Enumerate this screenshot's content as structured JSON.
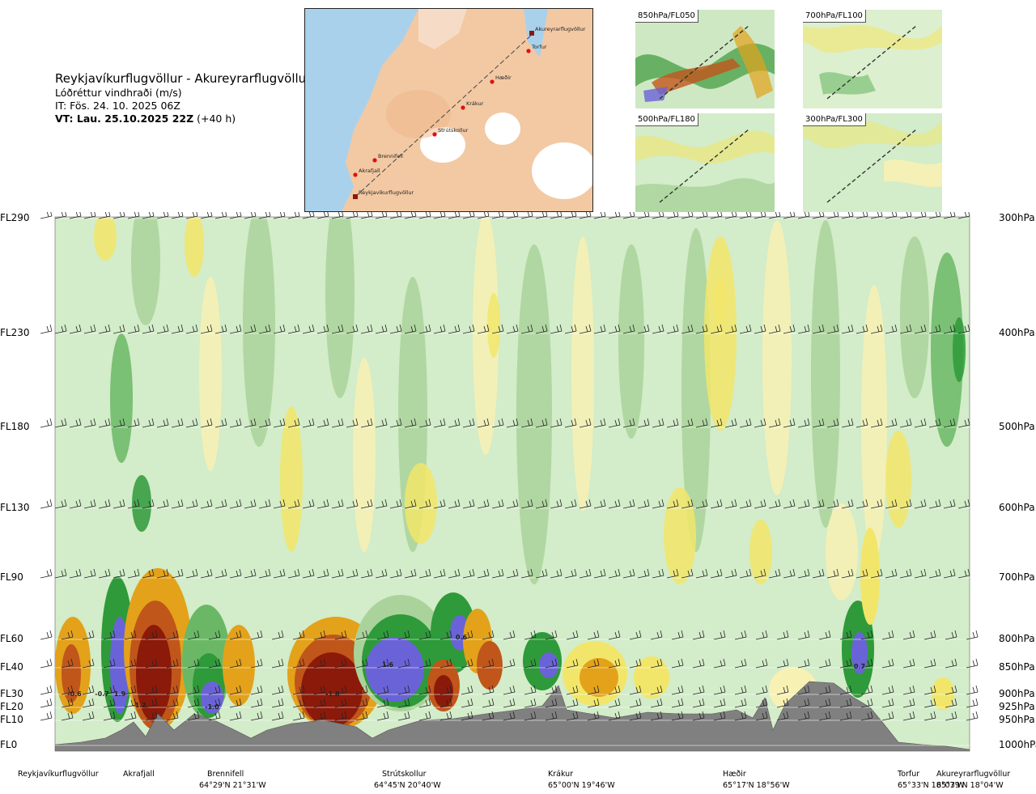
{
  "header": {
    "route": "Reykjavíkurflugvöllur - Akureyrarflugvöllur",
    "field": "Lóðréttur vindhraði (m/s)",
    "issue_time": "IT: Fös. 24. 10. 2025 06Z",
    "valid_time_bold": "VT: Lau. 25.10.2025 22Z",
    "valid_time_offset": " (+40 h)"
  },
  "route_map": {
    "labels": [
      "Akureyrarflugvöllur",
      "Torfur",
      "Hæðir",
      "Krákur",
      "Strútskollur",
      "Brennifell",
      "Akrafjall",
      "Reykjavíkurflugvöllur"
    ]
  },
  "mini_maps": [
    {
      "label": "850hPa/FL050"
    },
    {
      "label": "700hPa/FL100"
    },
    {
      "label": "500hPa/FL180"
    },
    {
      "label": "300hPa/FL300"
    }
  ],
  "chart_data": {
    "type": "heatmap",
    "title": "Reykjavíkurflugvöllur - Akureyrarflugvöllur",
    "field": "Lóðréttur vindhraði (m/s)",
    "y_left_labels": [
      "FL290",
      "FL230",
      "FL180",
      "FL130",
      "FL90",
      "FL60",
      "FL40",
      "FL30",
      "FL20",
      "FL10",
      "FL0"
    ],
    "y_right_labels": [
      "300hPa",
      "400hPa",
      "500hPa",
      "600hPa",
      "700hPa",
      "800hPa",
      "850hPa",
      "900hPa",
      "925hPa",
      "950hPa",
      "1000hPa"
    ],
    "pressure_levels_hpa": [
      300,
      400,
      500,
      600,
      700,
      800,
      850,
      900,
      925,
      950,
      1000
    ],
    "x_locations": [
      {
        "name": "Reykjavíkurflugvöllur",
        "coord": ""
      },
      {
        "name": "Akrafjall",
        "coord": ""
      },
      {
        "name": "Brennifell",
        "coord": "64°29'N 21°31'W"
      },
      {
        "name": "Strútskollur",
        "coord": "64°45'N 20°40'W"
      },
      {
        "name": "Krákur",
        "coord": "65°00'N 19°46'W"
      },
      {
        "name": "Hæðir",
        "coord": "65°17'N 18°56'W"
      },
      {
        "name": "Torfur",
        "coord": "65°33'N 18°07'W"
      },
      {
        "name": "Akureyrarflugvöllur",
        "coord": "65°39'N 18°04'W"
      }
    ],
    "value_labels": [
      "-0.6",
      "-0.7",
      "1.9",
      "-1.2",
      "-1.0",
      "-1.8",
      "1.6",
      "0.6",
      "0.7"
    ],
    "colors": {
      "strong_down": "#8b1a0a",
      "moderate_down": "#c0561a",
      "down": "#e3a21a",
      "weak_down": "#f2e66a",
      "very_weak_down": "#f7f1b4",
      "neutral": "#d3ecc9",
      "weak_up": "#a9d39a",
      "moderate_up": "#6ab866",
      "up": "#2e9a3a",
      "strong_up": "#6a63d8",
      "terrain": "#808080"
    }
  }
}
